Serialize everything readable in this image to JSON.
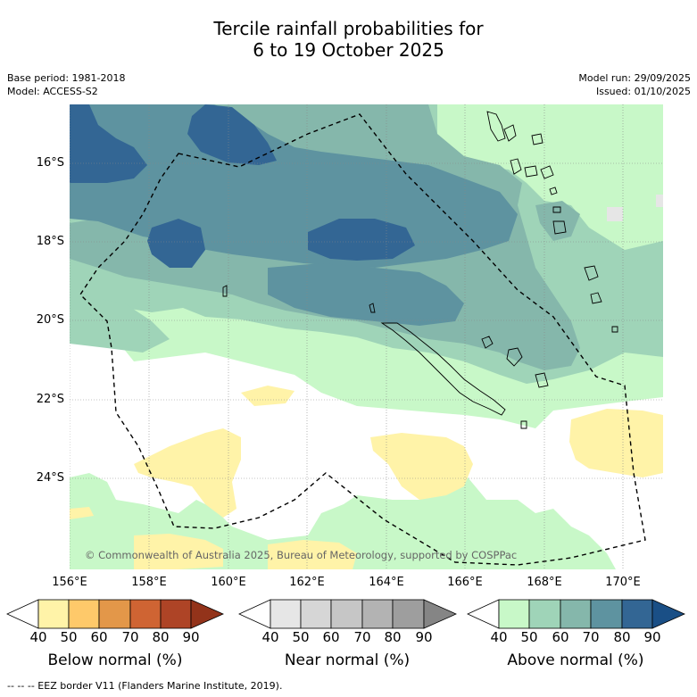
{
  "title": {
    "line1": "Tercile rainfall probabilities for",
    "line2": "6 to 19 October 2025"
  },
  "meta": {
    "base_period": "Base period: 1981-2018",
    "model": "Model: ACCESS-S2",
    "model_run": "Model run: 29/09/2025",
    "issued": "Issued: 01/10/2025"
  },
  "axes": {
    "lat_labels": [
      "16°S",
      "18°S",
      "20°S",
      "22°S",
      "24°S"
    ],
    "lon_labels": [
      "156°E",
      "158°E",
      "160°E",
      "162°E",
      "164°E",
      "166°E",
      "168°E",
      "170°E"
    ]
  },
  "copyright": "© Commonwealth of Australia 2025, Bureau of Meteorology, supported by COSPPac",
  "colorbars": [
    {
      "name": "below",
      "title": "Below normal (%)",
      "ticks": [
        "40",
        "50",
        "60",
        "70",
        "80",
        "90"
      ],
      "colors": [
        "#fff3a8",
        "#fec96a",
        "#e39749",
        "#cf6433",
        "#ae4426",
        "#93331a"
      ]
    },
    {
      "name": "near",
      "title": "Near normal (%)",
      "ticks": [
        "40",
        "50",
        "60",
        "70",
        "80",
        "90"
      ],
      "colors": [
        "#e6e6e6",
        "#d6d6d6",
        "#c6c6c6",
        "#b3b3b3",
        "#9e9e9e",
        "#858585"
      ]
    },
    {
      "name": "above",
      "title": "Above normal (%)",
      "ticks": [
        "40",
        "50",
        "60",
        "70",
        "80",
        "90"
      ],
      "colors": [
        "#c8f8c8",
        "#9fd4b8",
        "#85b7ab",
        "#5e93a0",
        "#336694",
        "#1a4f86"
      ]
    }
  ],
  "eez_legend": "--  --  -- EEZ border V11 (Flanders Marine Institute, 2019)."
}
